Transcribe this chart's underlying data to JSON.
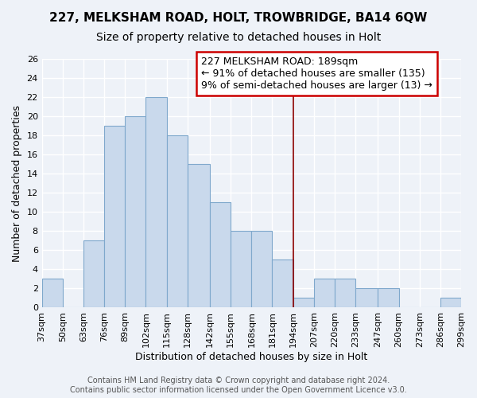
{
  "title": "227, MELKSHAM ROAD, HOLT, TROWBRIDGE, BA14 6QW",
  "subtitle": "Size of property relative to detached houses in Holt",
  "xlabel": "Distribution of detached houses by size in Holt",
  "ylabel": "Number of detached properties",
  "bin_labels": [
    "37sqm",
    "50sqm",
    "63sqm",
    "76sqm",
    "89sqm",
    "102sqm",
    "115sqm",
    "128sqm",
    "142sqm",
    "155sqm",
    "168sqm",
    "181sqm",
    "194sqm",
    "207sqm",
    "220sqm",
    "233sqm",
    "247sqm",
    "260sqm",
    "273sqm",
    "286sqm",
    "299sqm"
  ],
  "bin_edges": [
    37,
    50,
    63,
    76,
    89,
    102,
    115,
    128,
    142,
    155,
    168,
    181,
    194,
    207,
    220,
    233,
    247,
    260,
    273,
    286,
    299
  ],
  "bar_values": [
    3,
    0,
    7,
    19,
    20,
    22,
    18,
    15,
    11,
    8,
    8,
    5,
    1,
    3,
    3,
    2,
    2,
    0,
    0,
    1
  ],
  "bar_color": "#c9d9ec",
  "bar_edge_color": "#7fa8cc",
  "ylim": [
    0,
    26
  ],
  "yticks": [
    0,
    2,
    4,
    6,
    8,
    10,
    12,
    14,
    16,
    18,
    20,
    22,
    24,
    26
  ],
  "vline_x": 194,
  "vline_color": "#8b0000",
  "annotation_title": "227 MELKSHAM ROAD: 189sqm",
  "annotation_line2": "← 91% of detached houses are smaller (135)",
  "annotation_line3": "9% of semi-detached houses are larger (13) →",
  "annotation_box_color": "#ffffff",
  "annotation_box_edge_color": "#cc0000",
  "footer_line1": "Contains HM Land Registry data © Crown copyright and database right 2024.",
  "footer_line2": "Contains public sector information licensed under the Open Government Licence v3.0.",
  "title_fontsize": 11,
  "subtitle_fontsize": 10,
  "axis_label_fontsize": 9,
  "tick_fontsize": 8,
  "annotation_fontsize": 9,
  "footer_fontsize": 7,
  "bg_color": "#eef2f8",
  "grid_color": "#ffffff"
}
